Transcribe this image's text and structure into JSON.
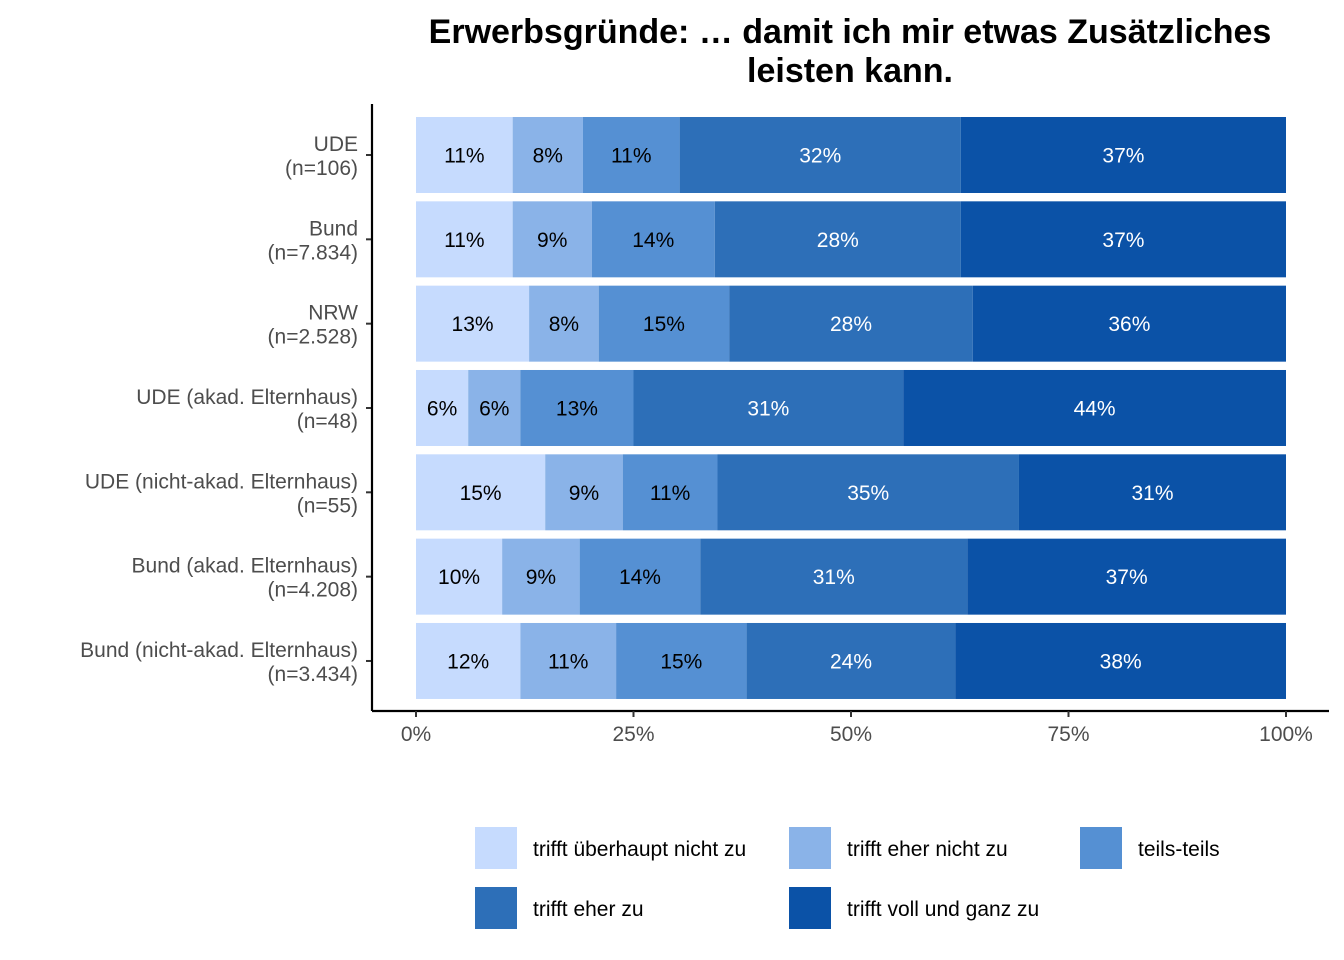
{
  "chart_data": {
    "type": "bar",
    "orientation": "horizontal",
    "stacked": true,
    "normalized": true,
    "title": "Erwerbsgründe: … damit ich mir etwas Zusätzliches leisten kann.",
    "title_lines": [
      "Erwerbsgründe: … damit ich mir etwas Zusätzliches",
      "leisten kann."
    ],
    "categories": [
      [
        "UDE",
        "(n=106)"
      ],
      [
        "Bund",
        "(n=7.834)"
      ],
      [
        "NRW",
        "(n=2.528)"
      ],
      [
        "UDE (akad. Elternhaus)",
        "(n=48)"
      ],
      [
        "UDE (nicht-akad. Elternhaus)",
        "(n=55)"
      ],
      [
        "Bund (akad. Elternhaus)",
        "(n=4.208)"
      ],
      [
        "Bund (nicht-akad. Elternhaus)",
        "(n=3.434)"
      ]
    ],
    "series": [
      {
        "name": "trifft überhaupt nicht zu",
        "color": "#c6dbfe",
        "label_color": "#000000",
        "values": [
          11,
          11,
          13,
          6,
          15,
          10,
          12
        ]
      },
      {
        "name": "trifft eher nicht zu",
        "color": "#8ab3e8",
        "label_color": "#000000",
        "values": [
          8,
          9,
          8,
          6,
          9,
          9,
          11
        ]
      },
      {
        "name": "teils-teils",
        "color": "#5590d3",
        "label_color": "#000000",
        "values": [
          11,
          14,
          15,
          13,
          11,
          14,
          15
        ]
      },
      {
        "name": "trifft eher zu",
        "color": "#2d6fb8",
        "label_color": "#ffffff",
        "values": [
          32,
          28,
          28,
          31,
          35,
          31,
          24
        ]
      },
      {
        "name": "trifft voll und ganz zu",
        "color": "#0b52a7",
        "label_color": "#ffffff",
        "values": [
          37,
          37,
          36,
          44,
          31,
          37,
          38
        ]
      }
    ],
    "xlim": [
      0,
      100
    ],
    "xticks": [
      "0%",
      "25%",
      "50%",
      "75%",
      "100%"
    ],
    "xtick_values": [
      0,
      25,
      50,
      75,
      100
    ],
    "xlabel": "",
    "ylabel": "",
    "grid": false,
    "legend_position": "bottom"
  }
}
